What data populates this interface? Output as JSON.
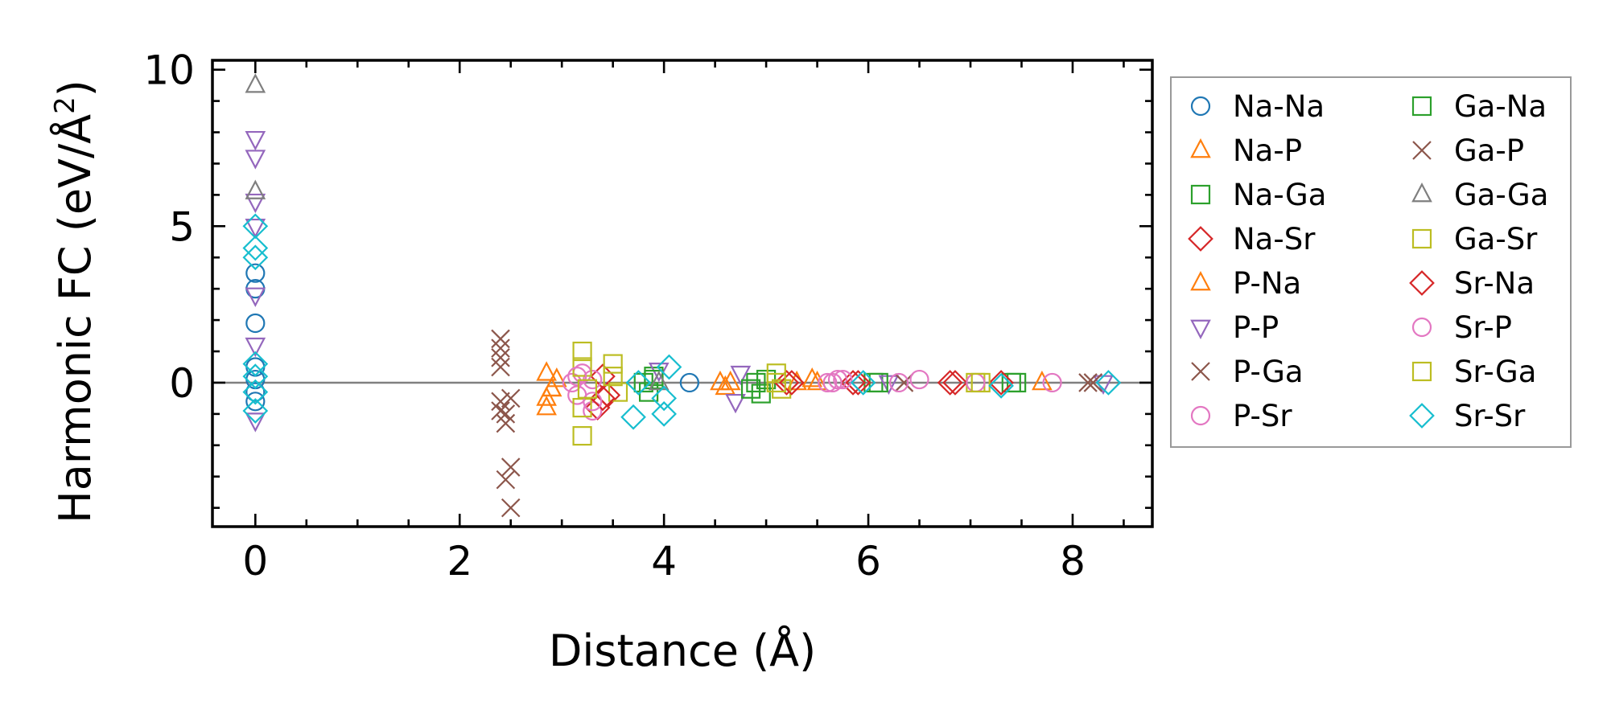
{
  "chart_data": {
    "type": "scatter",
    "title": "",
    "xlabel": "Distance (Å)",
    "ylabel_main": "Harmonic FC (eV/Å",
    "ylabel_sup": "2",
    "ylabel_close": ")",
    "xlim": [
      -0.42,
      8.78
    ],
    "ylim": [
      -4.6,
      10.3
    ],
    "xticks": [
      0,
      2,
      4,
      6,
      8
    ],
    "xtick_labels": [
      "0",
      "2",
      "4",
      "6",
      "8"
    ],
    "yticks": [
      0,
      5,
      10
    ],
    "ytick_labels": [
      "0",
      "5",
      "10"
    ],
    "zero_line": true,
    "grid": false,
    "legend_position": "outside-right",
    "series": [
      {
        "name": "Na-Na",
        "marker": "circle",
        "color": "#1f77b4",
        "x": [
          0,
          0,
          0,
          0,
          0,
          0,
          0,
          4.25
        ],
        "y": [
          3.5,
          1.9,
          3.0,
          0.5,
          -0.3,
          0.1,
          -0.6,
          0.0
        ]
      },
      {
        "name": "Na-P",
        "marker": "triangle-up",
        "color": "#ff7f0e",
        "x": [
          2.85,
          2.85,
          2.85,
          2.9,
          2.95,
          4.55,
          4.6,
          5.3,
          5.45,
          7.7
        ],
        "y": [
          -0.8,
          -0.5,
          0.3,
          -0.2,
          0.1,
          0.0,
          -0.15,
          0.0,
          0.1,
          0.0
        ]
      },
      {
        "name": "Na-Ga",
        "marker": "square",
        "color": "#2ca02c",
        "x": [
          3.8,
          3.85,
          3.9,
          4.9,
          4.95,
          5.0,
          6.05,
          7.4
        ],
        "y": [
          0.0,
          -0.3,
          0.2,
          0.0,
          -0.35,
          0.1,
          0.0,
          0.0
        ]
      },
      {
        "name": "Na-Sr",
        "marker": "diamond",
        "color": "#d62728",
        "x": [
          3.35,
          3.4,
          3.45,
          5.2,
          5.85,
          6.8
        ],
        "y": [
          -0.8,
          0.2,
          -0.4,
          0.0,
          0.0,
          0.0
        ]
      },
      {
        "name": "P-Na",
        "marker": "triangle-up",
        "color": "#ff7f0e",
        "x": [
          2.9,
          4.65,
          5.5
        ],
        "y": [
          -0.2,
          0.0,
          0.0
        ]
      },
      {
        "name": "P-P",
        "marker": "triangle-down",
        "color": "#9467bd",
        "x": [
          0,
          0,
          0,
          0,
          0,
          0,
          0,
          3.95,
          4.7,
          4.75,
          6.2,
          8.3
        ],
        "y": [
          7.8,
          7.2,
          5.8,
          5.0,
          2.8,
          1.2,
          -1.2,
          0.4,
          -0.6,
          0.3,
          0.0,
          0.0
        ]
      },
      {
        "name": "P-Ga",
        "marker": "x",
        "color": "#8c564b",
        "x": [
          2.4,
          2.4,
          2.4,
          2.4,
          2.4,
          2.45,
          2.45,
          2.5,
          2.5,
          2.5,
          8.15
        ],
        "y": [
          1.4,
          1.1,
          0.8,
          -0.6,
          -0.9,
          -1.3,
          -3.1,
          -2.7,
          -4.0,
          -0.5,
          0.0
        ]
      },
      {
        "name": "P-Sr",
        "marker": "circle",
        "color": "#e377c2",
        "x": [
          3.1,
          3.15,
          3.2,
          3.3,
          3.3,
          5.65,
          5.7
        ],
        "y": [
          0.0,
          -0.4,
          0.3,
          -0.9,
          0.1,
          0.0,
          0.1
        ]
      },
      {
        "name": "Ga-Na",
        "marker": "square",
        "color": "#2ca02c",
        "x": [
          3.9,
          4.85,
          6.1,
          7.45
        ],
        "y": [
          0.1,
          -0.2,
          0.0,
          0.0
        ]
      },
      {
        "name": "Ga-P",
        "marker": "x",
        "color": "#8c564b",
        "x": [
          2.4,
          2.45,
          6.35,
          8.2
        ],
        "y": [
          0.5,
          -1.0,
          0.0,
          0.0
        ]
      },
      {
        "name": "Ga-Ga",
        "marker": "triangle-up",
        "color": "#7f7f7f",
        "x": [
          0,
          0,
          3.95
        ],
        "y": [
          9.5,
          6.1,
          0.0
        ]
      },
      {
        "name": "Ga-Sr",
        "marker": "square",
        "color": "#bcbd22",
        "x": [
          3.2,
          3.2,
          3.2,
          3.2,
          3.5,
          3.55,
          5.1,
          5.15,
          7.05
        ],
        "y": [
          1.0,
          0.5,
          -0.8,
          -1.7,
          0.6,
          -0.3,
          0.3,
          -0.2,
          0.0
        ]
      },
      {
        "name": "Sr-Na",
        "marker": "diamond",
        "color": "#d62728",
        "x": [
          3.4,
          5.25,
          5.9,
          6.85,
          7.3
        ],
        "y": [
          -0.5,
          0.0,
          0.0,
          0.0,
          0.0
        ]
      },
      {
        "name": "Sr-P",
        "marker": "circle",
        "color": "#e377c2",
        "x": [
          3.15,
          3.3,
          5.6,
          5.75,
          6.3,
          6.5,
          7.05,
          7.8
        ],
        "y": [
          0.2,
          -0.6,
          0.0,
          0.1,
          0.0,
          0.1,
          0.0,
          0.0
        ]
      },
      {
        "name": "Sr-Ga",
        "marker": "square",
        "color": "#bcbd22",
        "x": [
          3.25,
          3.5,
          5.1,
          7.1
        ],
        "y": [
          -0.2,
          0.2,
          0.0,
          0.0
        ]
      },
      {
        "name": "Sr-Sr",
        "marker": "diamond",
        "color": "#17becf",
        "x": [
          0,
          0,
          0,
          0,
          0,
          0,
          0,
          3.7,
          3.75,
          4.0,
          4.05,
          4.0,
          5.95,
          7.3,
          8.35
        ],
        "y": [
          5.0,
          4.3,
          4.0,
          0.6,
          0.2,
          -0.3,
          -0.9,
          -1.1,
          0.0,
          -1.0,
          0.5,
          -0.5,
          0.0,
          -0.1,
          0.0
        ]
      }
    ]
  }
}
